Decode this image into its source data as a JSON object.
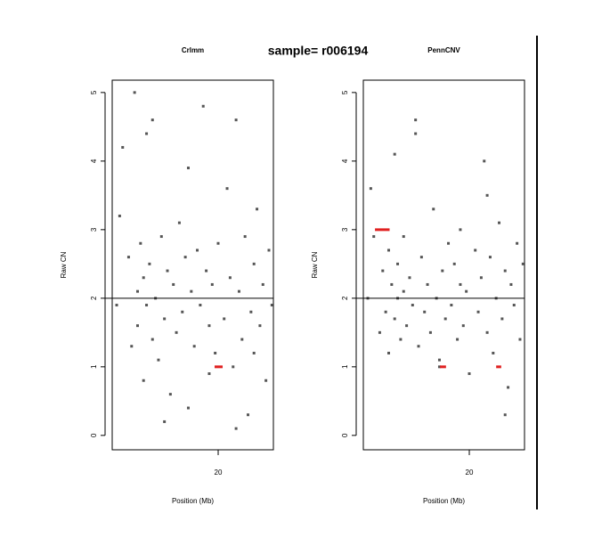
{
  "title": "sample= r006194",
  "chart_data": [
    {
      "type": "scatter",
      "title": "Crlmm",
      "ylabel": "Raw CN",
      "xlabel": "Position (Mb)",
      "xlim": [
        16.45,
        21.85
      ],
      "ylim": [
        -0.21,
        5.18
      ],
      "xticks": [
        20
      ],
      "yticks": [
        0,
        1,
        2,
        3,
        4,
        5
      ],
      "hline": 2,
      "series": [
        {
          "color": "#555555",
          "x": [
            16.6,
            16.7,
            16.8,
            17.0,
            17.1,
            17.2,
            17.3,
            17.3,
            17.4,
            17.5,
            17.5,
            17.6,
            17.7,
            17.8,
            17.8,
            17.9,
            18.0,
            18.1,
            18.2,
            18.3,
            18.4,
            18.5,
            18.6,
            18.7,
            18.8,
            18.9,
            19.0,
            19.1,
            19.2,
            19.3,
            19.4,
            19.5,
            19.6,
            19.7,
            19.7,
            19.8,
            19.9,
            20.0,
            20.2,
            20.3,
            20.4,
            20.5,
            20.6,
            20.7,
            20.8,
            20.9,
            21.0,
            21.1,
            21.2,
            21.3,
            21.4,
            21.5,
            21.6,
            21.7,
            21.8,
            18.2,
            19.0,
            20.6,
            17.6,
            21.2
          ],
          "y": [
            1.9,
            3.2,
            4.2,
            2.6,
            1.3,
            5.0,
            2.1,
            1.6,
            2.8,
            2.3,
            0.8,
            1.9,
            2.5,
            1.4,
            4.6,
            2.0,
            1.1,
            2.9,
            1.7,
            2.4,
            0.6,
            2.2,
            1.5,
            3.1,
            1.8,
            2.6,
            0.4,
            2.1,
            1.3,
            2.7,
            1.9,
            4.8,
            2.4,
            1.6,
            0.9,
            2.2,
            1.2,
            2.8,
            1.7,
            3.6,
            2.3,
            1.0,
            4.6,
            2.1,
            1.4,
            2.9,
            0.3,
            1.8,
            2.5,
            3.3,
            1.6,
            2.2,
            0.8,
            2.7,
            1.9,
            0.2,
            3.9,
            0.1,
            4.4,
            1.2
          ]
        }
      ],
      "segments": {
        "color": "#e02020",
        "x0": [
          19.88
        ],
        "x1": [
          20.15
        ],
        "y": [
          1
        ]
      }
    },
    {
      "type": "scatter",
      "title": "PennCNV",
      "ylabel": "Raw CN",
      "xlabel": "Position (Mb)",
      "xlim": [
        16.45,
        21.85
      ],
      "ylim": [
        -0.21,
        5.18
      ],
      "xticks": [
        20
      ],
      "yticks": [
        0,
        1,
        2,
        3,
        4,
        5
      ],
      "hline": 2,
      "series": [
        {
          "color": "#555555",
          "x": [
            16.6,
            16.7,
            16.8,
            17.0,
            17.1,
            17.2,
            17.3,
            17.3,
            17.4,
            17.5,
            17.5,
            17.6,
            17.7,
            17.8,
            17.8,
            17.9,
            18.0,
            18.1,
            18.2,
            18.3,
            18.4,
            18.5,
            18.6,
            18.7,
            18.8,
            18.9,
            19.0,
            19.1,
            19.2,
            19.3,
            19.4,
            19.5,
            19.6,
            19.7,
            19.7,
            19.8,
            19.9,
            20.0,
            20.2,
            20.3,
            20.4,
            20.5,
            20.6,
            20.7,
            20.8,
            20.9,
            21.0,
            21.1,
            21.2,
            21.3,
            21.4,
            21.5,
            21.6,
            21.7,
            21.8,
            18.2,
            19.0,
            20.6,
            17.6,
            21.2
          ],
          "y": [
            2.0,
            3.6,
            2.9,
            1.5,
            2.4,
            1.8,
            2.7,
            1.2,
            2.2,
            4.1,
            1.7,
            2.5,
            1.4,
            2.1,
            2.9,
            1.6,
            2.3,
            1.9,
            4.4,
            1.3,
            2.6,
            1.8,
            2.2,
            1.5,
            3.3,
            2.0,
            1.1,
            2.4,
            1.7,
            2.8,
            1.9,
            2.5,
            1.4,
            2.2,
            3.0,
            1.6,
            2.1,
            0.9,
            2.7,
            1.8,
            2.3,
            4.0,
            1.5,
            2.6,
            1.2,
            2.0,
            3.1,
            1.7,
            2.4,
            0.7,
            2.2,
            1.9,
            2.8,
            1.4,
            2.5,
            4.6,
            1.0,
            3.5,
            2.0,
            0.3
          ]
        }
      ],
      "segments": {
        "color": "#e02020",
        "x0": [
          16.84,
          19.02,
          20.9
        ],
        "x1": [
          17.33,
          19.22,
          21.07
        ],
        "y": [
          3,
          1,
          1
        ]
      }
    }
  ]
}
